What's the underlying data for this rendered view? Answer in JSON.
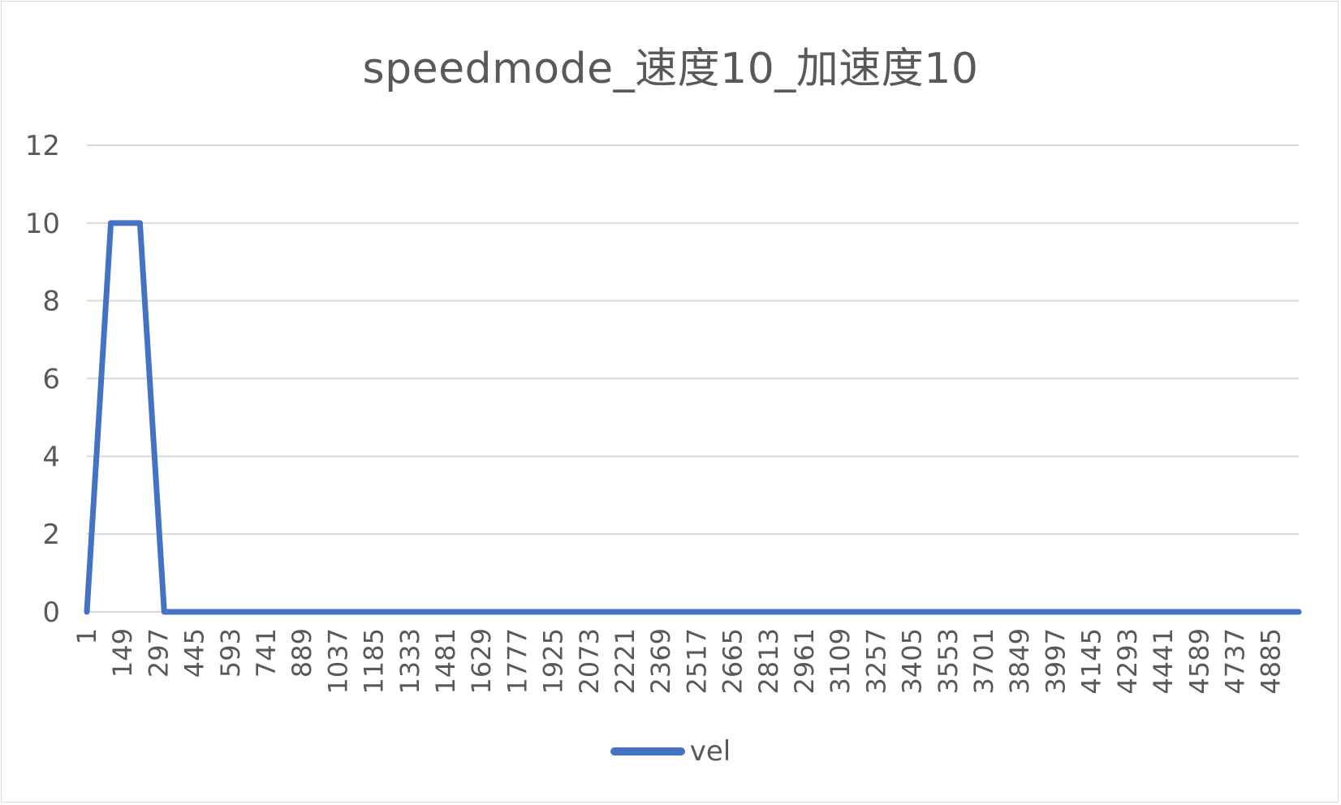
{
  "chart_data": {
    "type": "line",
    "title": "speedmode_速度10_加速度10",
    "xlabel": "",
    "ylabel": "",
    "ylim": [
      0,
      12
    ],
    "yticks": [
      0,
      2,
      4,
      6,
      8,
      10,
      12
    ],
    "x_range": [
      1,
      5000
    ],
    "categories": [
      "1",
      "149",
      "297",
      "445",
      "593",
      "741",
      "889",
      "1037",
      "1185",
      "1333",
      "1481",
      "1629",
      "1777",
      "1925",
      "2073",
      "2221",
      "2369",
      "2517",
      "2665",
      "2813",
      "2961",
      "3109",
      "3257",
      "3405",
      "3553",
      "3701",
      "3849",
      "3997",
      "4145",
      "4293",
      "4441",
      "4589",
      "4737",
      "4885"
    ],
    "grid": "horizontal",
    "legend_position": "bottom",
    "series": [
      {
        "name": "vel",
        "color": "#4472c4",
        "points": [
          [
            1,
            0
          ],
          [
            100,
            10
          ],
          [
            220,
            10
          ],
          [
            320,
            0
          ],
          [
            5000,
            0
          ]
        ]
      }
    ]
  }
}
